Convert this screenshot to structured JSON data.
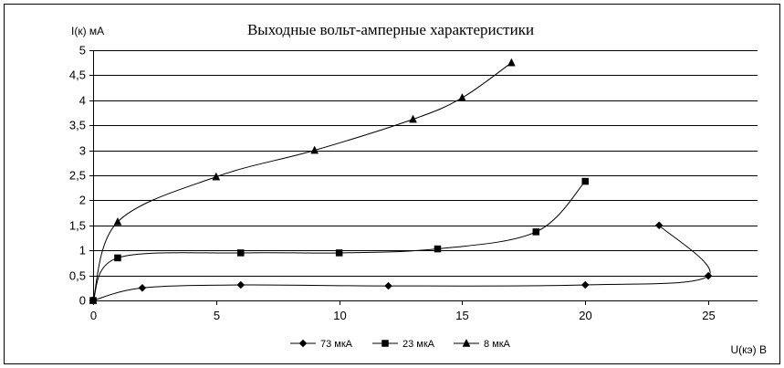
{
  "chart_data": {
    "type": "line",
    "title": "Выходные вольт-амперные характеристики",
    "xlabel": "U(кэ) В",
    "ylabel": "I(к) мА",
    "xlim": [
      0,
      27
    ],
    "ylim": [
      0,
      5
    ],
    "x_ticks": [
      0,
      5,
      10,
      15,
      20,
      25
    ],
    "x_tick_labels": [
      "0",
      "5",
      "10",
      "15",
      "20",
      "25"
    ],
    "y_ticks": [
      0,
      0.5,
      1,
      1.5,
      2,
      2.5,
      3,
      3.5,
      4,
      4.5,
      5
    ],
    "y_tick_labels": [
      "0",
      "0,5",
      "1",
      "1,5",
      "2",
      "2,5",
      "3",
      "3,5",
      "4",
      "4,5",
      "5"
    ],
    "grid": "horizontal",
    "legend_position": "bottom",
    "series": [
      {
        "name": "73 мкА",
        "marker": "diamond",
        "color": "#000000",
        "x": [
          0,
          2,
          6,
          12,
          20,
          25,
          23
        ],
        "y": [
          0,
          0.25,
          0.31,
          0.29,
          0.31,
          0.49,
          1.5
        ]
      },
      {
        "name": "23 мкА",
        "marker": "square",
        "color": "#000000",
        "x": [
          0,
          1,
          6,
          10,
          14,
          18,
          20
        ],
        "y": [
          0,
          0.85,
          0.95,
          0.95,
          1.03,
          1.37,
          2.38
        ]
      },
      {
        "name": "8 мкА",
        "marker": "triangle",
        "color": "#000000",
        "x": [
          0,
          1,
          5,
          9,
          13,
          15,
          17
        ],
        "y": [
          0,
          1.57,
          2.47,
          3.0,
          3.62,
          4.05,
          4.75
        ]
      }
    ]
  }
}
